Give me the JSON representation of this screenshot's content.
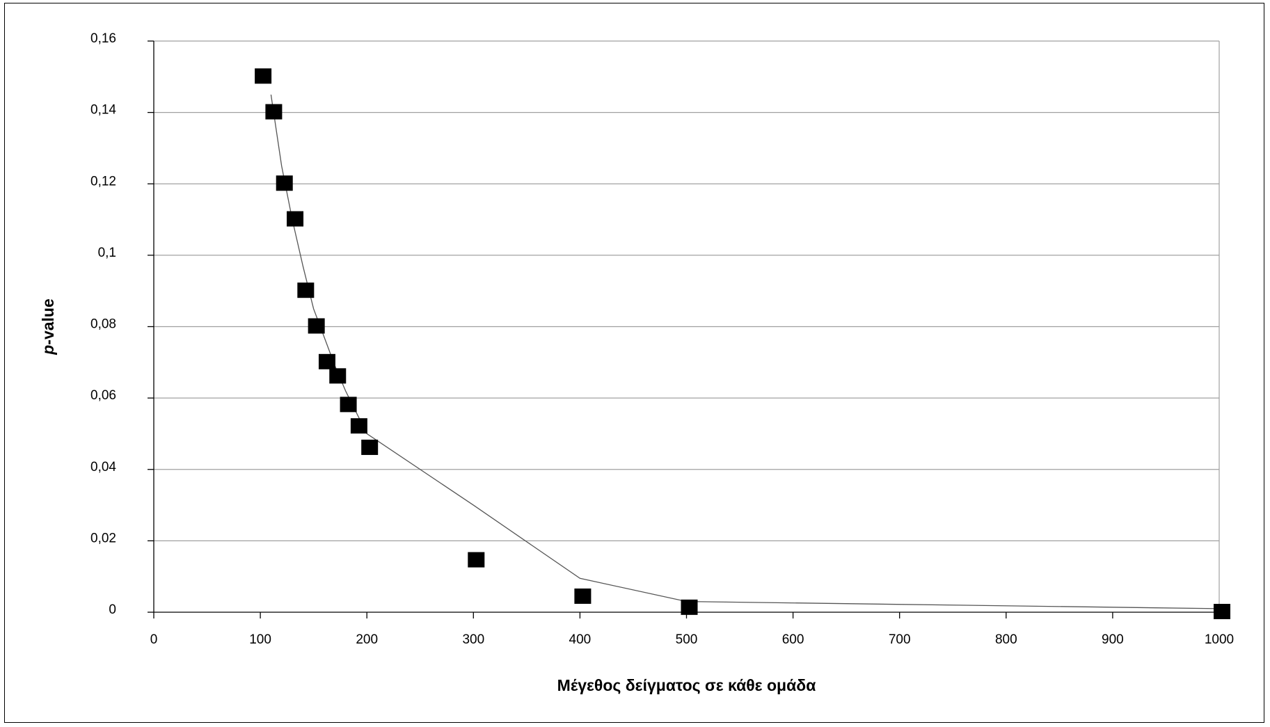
{
  "chart_data": {
    "type": "scatter",
    "title": "",
    "xlabel": "Μέγεθος δείγματος σε κάθε ομάδα",
    "ylabel_italic": "p",
    "ylabel_rest": "-value",
    "xlim": [
      0,
      1000
    ],
    "ylim": [
      0,
      0.16
    ],
    "x_ticks": [
      0,
      100,
      200,
      300,
      400,
      500,
      600,
      700,
      800,
      900,
      1000
    ],
    "x_tick_labels": [
      "0",
      "100",
      "200",
      "300",
      "400",
      "500",
      "600",
      "700",
      "800",
      "900",
      "1000"
    ],
    "y_ticks": [
      0,
      0.02,
      0.04,
      0.06,
      0.08,
      0.1,
      0.12,
      0.14,
      0.16
    ],
    "y_tick_labels": [
      "0",
      "0,02",
      "0,04",
      "0,06",
      "0,08",
      "0,1",
      "0,12",
      "0,14",
      "0,16"
    ],
    "grid": "horizontal",
    "legend": "none",
    "marker_color": "#000000",
    "line_color": "#555555",
    "grid_color": "#a0a0a0",
    "series": [
      {
        "kind": "markers",
        "x": [
          100,
          110,
          120,
          130,
          140,
          150,
          160,
          170,
          180,
          190,
          200,
          300,
          400,
          500,
          1000
        ],
        "y": [
          0.15,
          0.14,
          0.12,
          0.11,
          0.09,
          0.08,
          0.07,
          0.066,
          0.058,
          0.052,
          0.046,
          0.0145,
          0.0043,
          0.0012,
          0.0
        ]
      },
      {
        "kind": "line",
        "x": [
          110,
          120,
          130,
          140,
          150,
          160,
          170,
          180,
          190,
          200,
          300,
          400,
          500,
          1000
        ],
        "y": [
          0.145,
          0.125,
          0.11,
          0.097,
          0.085,
          0.077,
          0.069,
          0.062,
          0.056,
          0.05,
          0.03,
          0.0095,
          0.003,
          0.001
        ]
      }
    ]
  }
}
